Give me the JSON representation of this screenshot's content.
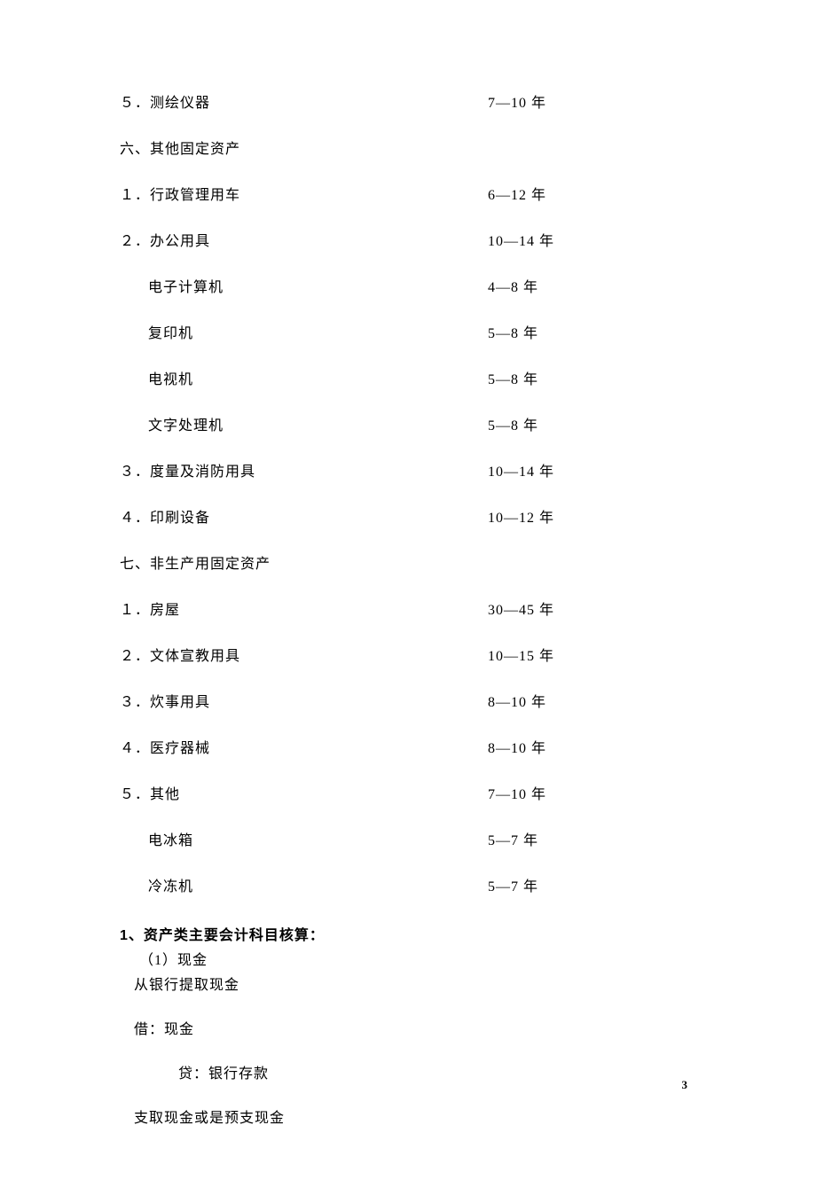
{
  "rows": [
    {
      "label": "５．测绘仪器",
      "value": "7—10 年",
      "indent": 0
    },
    {
      "label": "六、其他固定资产",
      "value": "",
      "indent": 0
    },
    {
      "label": "１．行政管理用车",
      "value": "6—12 年",
      "indent": 0
    },
    {
      "label": "２．办公用具",
      "value": "10—14 年",
      "indent": 0
    },
    {
      "label": "电子计算机",
      "value": "4—8 年",
      "indent": 1
    },
    {
      "label": "复印机",
      "value": "5—8 年",
      "indent": 1
    },
    {
      "label": "电视机",
      "value": "5—8 年",
      "indent": 1
    },
    {
      "label": "文字处理机",
      "value": "5—8 年",
      "indent": 1
    },
    {
      "label": "３．度量及消防用具",
      "value": "10—14 年",
      "indent": 0
    },
    {
      "label": "４．印刷设备",
      "value": "10—12 年",
      "indent": 0
    },
    {
      "label": "七、非生产用固定资产",
      "value": "",
      "indent": 0
    },
    {
      "label": "１．房屋",
      "value": "30—45 年",
      "indent": 0
    },
    {
      "label": "２．文体宣教用具",
      "value": "10—15 年",
      "indent": 0
    },
    {
      "label": "３．炊事用具",
      "value": "8—10 年",
      "indent": 0
    },
    {
      "label": "４．医疗器械",
      "value": "8—10 年",
      "indent": 0
    },
    {
      "label": "５．其他",
      "value": "7—10 年",
      "indent": 0
    },
    {
      "label": "电冰箱",
      "value": "5—7 年",
      "indent": 1
    },
    {
      "label": "冷冻机",
      "value": "5—7 年",
      "indent": 1
    }
  ],
  "boldHeading": "1、资产类主要会计科目核算：",
  "subLine1": "（1）现金",
  "textLine1": "从银行提取现金",
  "para1": "借：现金",
  "para2": "贷：银行存款",
  "para3": "支取现金或是预支现金",
  "pageNumber": "3"
}
